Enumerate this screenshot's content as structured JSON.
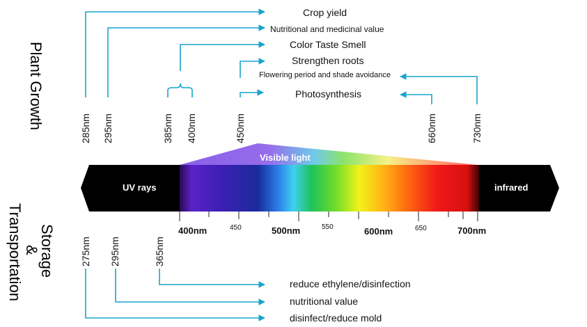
{
  "sections": {
    "top": "Plant Growth",
    "bottom_line1": "Storage",
    "bottom_line2": "&",
    "bottom_line3": "Transportation"
  },
  "plant_growth": {
    "effects": [
      "Crop yield",
      "Nutritional and medicinal value",
      "Color Taste Smell",
      "Strengthen roots",
      "Flowering period and shade avoidance",
      "Photosynthesis"
    ],
    "wavelengths": [
      "285nm",
      "295nm",
      "385nm",
      "400nm",
      "450nm",
      "660nm",
      "730nm"
    ]
  },
  "spectrum": {
    "uv_label": "UV rays",
    "visible_label": "Visible light",
    "ir_label": "infrared",
    "scale_major": [
      "400nm",
      "500nm",
      "600nm",
      "700nm"
    ],
    "scale_minor": [
      "450",
      "550",
      "650"
    ]
  },
  "storage": {
    "wavelengths": [
      "275nm",
      "295nm",
      "365nm"
    ],
    "effects": [
      "reduce ethylene/disinfection",
      "nutritional value",
      "disinfect/reduce mold"
    ]
  },
  "colors": {
    "connector": "#1aa3cf",
    "band": "#000000"
  }
}
